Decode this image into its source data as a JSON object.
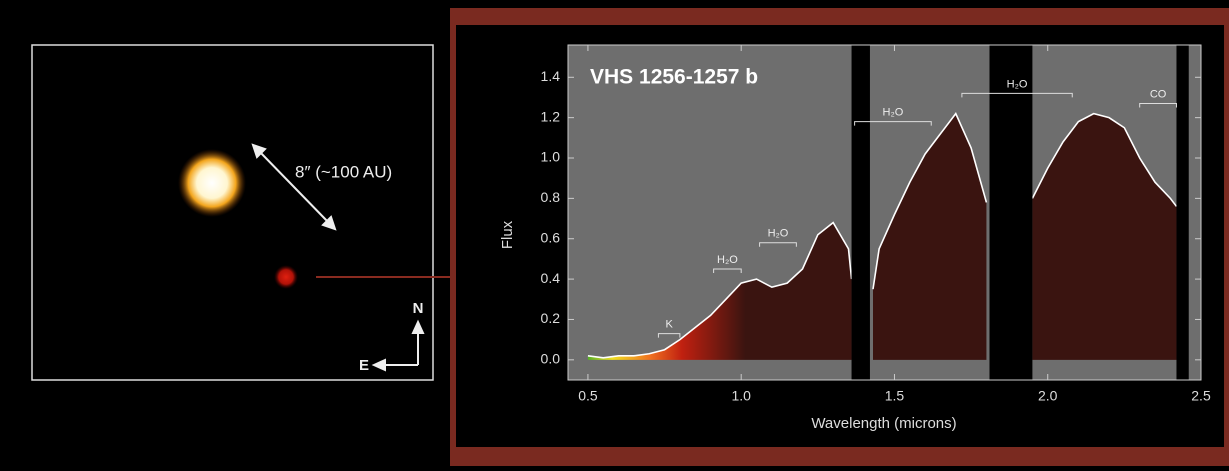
{
  "image_panel": {
    "scale_label": "8″ (~100 AU)",
    "north_label": "N",
    "east_label": "E"
  },
  "chart_data": {
    "type": "line",
    "title": "VHS 1256-1257 b",
    "x_label": "Wavelength (microns)",
    "y_label": "Flux",
    "xlim": [
      0.435,
      2.5
    ],
    "ylim": [
      -0.1,
      1.56
    ],
    "xticks": [
      0.5,
      {
        "value": 1,
        "label": "1.0"
      },
      1.5,
      {
        "value": 2,
        "label": "2.0"
      },
      2.5
    ],
    "yticks": [
      {
        "value": 0,
        "label": "0.0"
      },
      0.2,
      0.4,
      0.6,
      0.8,
      {
        "value": 1,
        "label": "1.0"
      },
      1.2,
      1.4
    ],
    "x": [
      0.5,
      0.55,
      0.6,
      0.65,
      0.7,
      0.75,
      0.8,
      0.85,
      0.9,
      0.95,
      1.0,
      1.05,
      1.1,
      1.15,
      1.2,
      1.25,
      1.3,
      1.35,
      1.36,
      1.4,
      1.43,
      1.45,
      1.5,
      1.55,
      1.6,
      1.65,
      1.7,
      1.75,
      1.8,
      1.85,
      1.9,
      1.95,
      2.0,
      2.05,
      2.1,
      2.15,
      2.2,
      2.25,
      2.3,
      2.35,
      2.4,
      2.42
    ],
    "series": [
      {
        "name": "VHS 1256-1257 b",
        "color": "#ffffff",
        "values": [
          0.02,
          0.01,
          0.02,
          0.02,
          0.03,
          0.05,
          0.1,
          0.16,
          0.22,
          0.3,
          0.38,
          0.4,
          0.36,
          0.38,
          0.45,
          0.62,
          0.68,
          0.55,
          0.4,
          null,
          0.35,
          0.55,
          0.72,
          0.88,
          1.02,
          1.12,
          1.22,
          1.05,
          0.78,
          null,
          null,
          0.8,
          0.95,
          1.08,
          1.18,
          1.22,
          1.2,
          1.15,
          1.0,
          0.88,
          0.8,
          0.76
        ]
      }
    ],
    "masked_ranges": [
      [
        1.36,
        1.42
      ],
      [
        1.81,
        1.95
      ],
      [
        2.42,
        2.46
      ]
    ],
    "annotations": [
      {
        "label": "K",
        "x": [
          0.73,
          0.8
        ],
        "y": 0.13
      },
      {
        "label": "H₂O",
        "x": [
          0.91,
          1.0
        ],
        "y": 0.45
      },
      {
        "label": "H₂O",
        "x": [
          1.06,
          1.18
        ],
        "y": 0.58
      },
      {
        "label": "H₂O",
        "x": [
          1.37,
          1.62
        ],
        "y": 1.18
      },
      {
        "label": "H₂O",
        "x": [
          1.72,
          2.08
        ],
        "y": 1.32
      },
      {
        "label": "CO",
        "x": [
          2.3,
          2.42
        ],
        "y": 1.27
      }
    ]
  }
}
